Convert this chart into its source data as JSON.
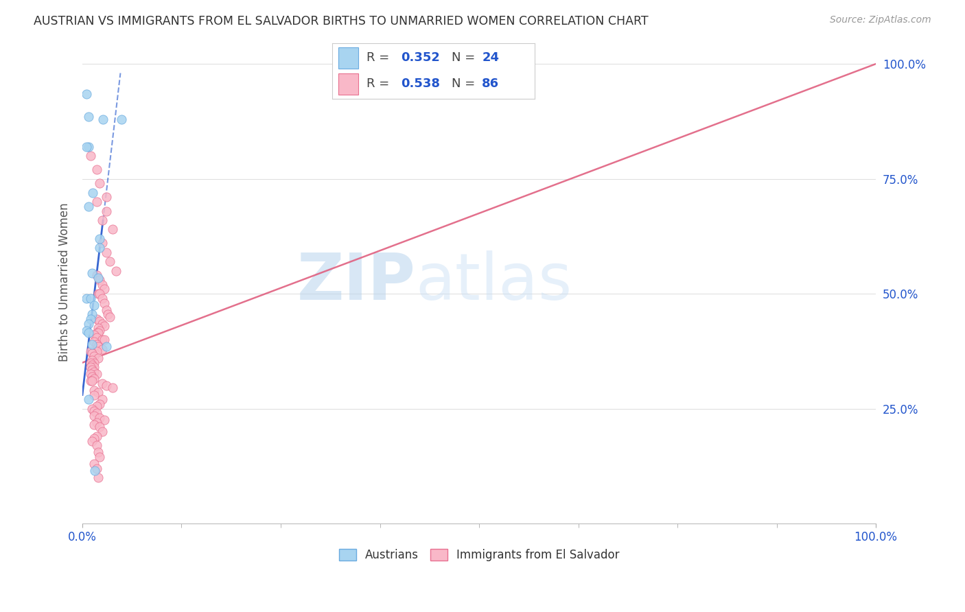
{
  "title": "AUSTRIAN VS IMMIGRANTS FROM EL SALVADOR BIRTHS TO UNMARRIED WOMEN CORRELATION CHART",
  "source": "Source: ZipAtlas.com",
  "ylabel": "Births to Unmarried Women",
  "legend_austrians_R": "0.352",
  "legend_austrians_N": "24",
  "legend_salvador_R": "0.538",
  "legend_salvador_N": "86",
  "legend_label_austrians": "Austrians",
  "legend_label_salvador": "Immigrants from El Salvador",
  "color_austrians_fill": "#a8d4f0",
  "color_austrians_edge": "#6aabe0",
  "color_salvador_fill": "#f9b8c8",
  "color_salvador_edge": "#e87090",
  "color_line_austrians": "#2255cc",
  "color_line_salvador": "#e06080",
  "color_legend_blue": "#2255cc",
  "color_ytick": "#2255cc",
  "color_xtick": "#2255cc",
  "background": "#ffffff",
  "grid_color": "#e0e0e0",
  "watermark_color": "#c8dff0",
  "austrians_x": [
    0.005,
    0.008,
    0.026,
    0.049,
    0.008,
    0.005,
    0.013,
    0.008,
    0.022,
    0.022,
    0.012,
    0.02,
    0.005,
    0.01,
    0.015,
    0.012,
    0.01,
    0.008,
    0.005,
    0.008,
    0.012,
    0.03,
    0.008,
    0.016
  ],
  "austrians_y": [
    0.935,
    0.885,
    0.88,
    0.88,
    0.82,
    0.82,
    0.72,
    0.69,
    0.62,
    0.6,
    0.545,
    0.535,
    0.49,
    0.49,
    0.475,
    0.455,
    0.445,
    0.435,
    0.42,
    0.415,
    0.39,
    0.385,
    0.27,
    0.115
  ],
  "salvador_x": [
    0.01,
    0.018,
    0.022,
    0.03,
    0.018,
    0.03,
    0.025,
    0.038,
    0.025,
    0.03,
    0.035,
    0.042,
    0.018,
    0.022,
    0.025,
    0.028,
    0.02,
    0.022,
    0.025,
    0.028,
    0.03,
    0.032,
    0.035,
    0.018,
    0.022,
    0.025,
    0.028,
    0.02,
    0.022,
    0.018,
    0.02,
    0.015,
    0.018,
    0.025,
    0.028,
    0.015,
    0.018,
    0.02,
    0.025,
    0.018,
    0.01,
    0.012,
    0.015,
    0.02,
    0.012,
    0.015,
    0.01,
    0.012,
    0.015,
    0.01,
    0.012,
    0.015,
    0.018,
    0.01,
    0.012,
    0.015,
    0.01,
    0.012,
    0.025,
    0.03,
    0.038,
    0.015,
    0.02,
    0.015,
    0.025,
    0.022,
    0.018,
    0.012,
    0.015,
    0.018,
    0.015,
    0.022,
    0.028,
    0.018,
    0.015,
    0.022,
    0.025,
    0.018,
    0.015,
    0.012,
    0.018,
    0.02,
    0.022,
    0.015,
    0.018,
    0.02
  ],
  "salvador_y": [
    0.8,
    0.77,
    0.74,
    0.71,
    0.7,
    0.68,
    0.66,
    0.64,
    0.61,
    0.59,
    0.57,
    0.55,
    0.54,
    0.53,
    0.52,
    0.51,
    0.5,
    0.5,
    0.49,
    0.48,
    0.465,
    0.455,
    0.45,
    0.445,
    0.44,
    0.435,
    0.43,
    0.425,
    0.42,
    0.415,
    0.415,
    0.41,
    0.405,
    0.4,
    0.4,
    0.395,
    0.39,
    0.385,
    0.38,
    0.375,
    0.375,
    0.37,
    0.365,
    0.36,
    0.355,
    0.35,
    0.35,
    0.345,
    0.34,
    0.34,
    0.335,
    0.33,
    0.325,
    0.325,
    0.32,
    0.315,
    0.31,
    0.31,
    0.305,
    0.3,
    0.295,
    0.29,
    0.285,
    0.28,
    0.27,
    0.26,
    0.255,
    0.25,
    0.245,
    0.24,
    0.235,
    0.23,
    0.225,
    0.22,
    0.215,
    0.21,
    0.2,
    0.19,
    0.185,
    0.18,
    0.17,
    0.155,
    0.145,
    0.13,
    0.12,
    0.1
  ],
  "xlim": [
    0.0,
    1.0
  ],
  "ylim": [
    0.0,
    1.05
  ],
  "xticks": [
    0.0,
    1.0
  ],
  "xtick_labels": [
    "0.0%",
    "100.0%"
  ],
  "yticks": [
    0.25,
    0.5,
    0.75,
    1.0
  ],
  "ytick_labels": [
    "25.0%",
    "50.0%",
    "75.0%",
    "100.0%"
  ],
  "blue_line_x": [
    0.0,
    0.048
  ],
  "blue_line_y": [
    0.28,
    0.98
  ],
  "pink_line_x": [
    0.0,
    1.0
  ],
  "pink_line_y": [
    0.35,
    1.0
  ]
}
